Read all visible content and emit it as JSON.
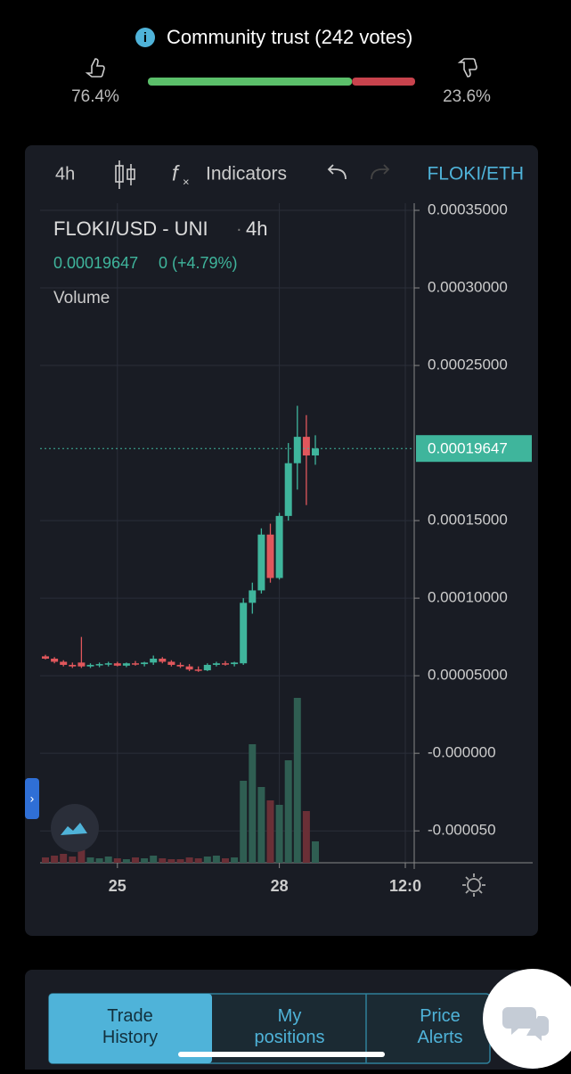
{
  "trust": {
    "title": "Community trust (242 votes)",
    "up": 76.4,
    "up_label": "76.4%",
    "down": 23.6,
    "down_label": "23.6%",
    "up_color": "#5bbf6a",
    "down_color": "#c8434d"
  },
  "toolbar": {
    "interval": "4h",
    "indicators": "Indicators",
    "pair": "FLOKI/ETH"
  },
  "legend": {
    "symbol": "FLOKI/USD - UNI",
    "interval": "4h",
    "change": "0 (+4.79%)",
    "volume": "Volume"
  },
  "tabs": [
    "Trade History",
    "My positions",
    "Price Alerts"
  ],
  "chart_data": {
    "type": "candlestick",
    "categories": [
      null,
      null,
      null,
      null,
      null,
      null,
      null,
      null,
      "25",
      null,
      null,
      null,
      null,
      null,
      null,
      null,
      null,
      null,
      null,
      null,
      null,
      null,
      null,
      null,
      null,
      null,
      "28",
      null,
      null,
      null,
      null,
      null,
      null,
      null,
      null,
      null,
      null,
      null,
      null,
      null,
      "12:0"
    ],
    "open": [
      6.25e-05,
      6.1e-05,
      5.9e-05,
      5.7e-05,
      5.85e-05,
      5.6e-05,
      5.7e-05,
      5.75e-05,
      5.8e-05,
      5.65e-05,
      5.8e-05,
      5.75e-05,
      5.85e-05,
      6.1e-05,
      5.9e-05,
      5.7e-05,
      5.6e-05,
      5.4e-05,
      5.35e-05,
      5.7e-05,
      5.8e-05,
      5.75e-05,
      5.8e-05,
      9.7e-05,
      0.000105,
      0.000141,
      0.000113,
      0.000153,
      0.000187,
      0.000204,
      0.000192,
      null,
      null,
      null,
      null,
      null,
      null,
      null,
      null,
      null,
      null
    ],
    "high": [
      6.35e-05,
      6.2e-05,
      6e-05,
      5.85e-05,
      7.5e-05,
      5.8e-05,
      5.85e-05,
      5.9e-05,
      5.9e-05,
      5.85e-05,
      5.95e-05,
      5.9e-05,
      6.3e-05,
      6.2e-05,
      6e-05,
      5.85e-05,
      5.75e-05,
      5.6e-05,
      5.8e-05,
      5.9e-05,
      5.95e-05,
      5.9e-05,
      0.0001,
      0.00011,
      0.000145,
      0.000148,
      0.000155,
      0.0002,
      0.000224,
      0.000218,
      0.000205,
      null,
      null,
      null,
      null,
      null,
      null,
      null,
      null,
      null,
      null
    ],
    "low": [
      6.05e-05,
      5.8e-05,
      5.6e-05,
      5.5e-05,
      5.5e-05,
      5.5e-05,
      5.55e-05,
      5.6e-05,
      5.6e-05,
      5.55e-05,
      5.65e-05,
      5.6e-05,
      5.7e-05,
      5.8e-05,
      5.6e-05,
      5.5e-05,
      5.3e-05,
      5.25e-05,
      5.3e-05,
      5.6e-05,
      5.65e-05,
      5.6e-05,
      5.7e-05,
      9e-05,
      0.000103,
      0.00011,
      0.000112,
      0.00015,
      0.00017,
      0.00016,
      0.000186,
      null,
      null,
      null,
      null,
      null,
      null,
      null,
      null,
      null,
      null
    ],
    "close": [
      6.1e-05,
      5.9e-05,
      5.7e-05,
      5.6e-05,
      5.6e-05,
      5.7e-05,
      5.75e-05,
      5.8e-05,
      5.65e-05,
      5.8e-05,
      5.75e-05,
      5.85e-05,
      6.1e-05,
      5.9e-05,
      5.7e-05,
      5.6e-05,
      5.4e-05,
      5.35e-05,
      5.7e-05,
      5.8e-05,
      5.75e-05,
      5.85e-05,
      9.7e-05,
      0.000105,
      0.000141,
      0.000113,
      0.000153,
      0.000187,
      0.000204,
      0.000192,
      0.00019647,
      null,
      null,
      null,
      null,
      null,
      null,
      null,
      null,
      null,
      null
    ],
    "volume": [
      6,
      8,
      10,
      7,
      18,
      6,
      5,
      7,
      5,
      4,
      6,
      5,
      8,
      5,
      4,
      4,
      6,
      5,
      7,
      8,
      5,
      6,
      92,
      133,
      85,
      70,
      65,
      115,
      185,
      58,
      24,
      null,
      null,
      null,
      null,
      null,
      null,
      null,
      null,
      null,
      null
    ],
    "volume_lim": [
      0,
      200
    ],
    "ylim": [
      -7e-05,
      0.00035
    ],
    "yticks": [
      {
        "value": 0.00035,
        "label": "0.00035000"
      },
      {
        "value": 0.0003,
        "label": "0.00030000"
      },
      {
        "value": 0.00025,
        "label": "0.00025000"
      },
      {
        "value": 0.00015,
        "label": "0.00015000"
      },
      {
        "value": 0.0001,
        "label": "0.00010000"
      },
      {
        "value": 5e-05,
        "label": "0.00005000"
      },
      {
        "value": 0,
        "label": "-0.000000"
      },
      {
        "value": -5e-05,
        "label": "-0.000050"
      }
    ],
    "up_color": "#3fb59c",
    "down_color": "#e0575c",
    "grid": true
  }
}
